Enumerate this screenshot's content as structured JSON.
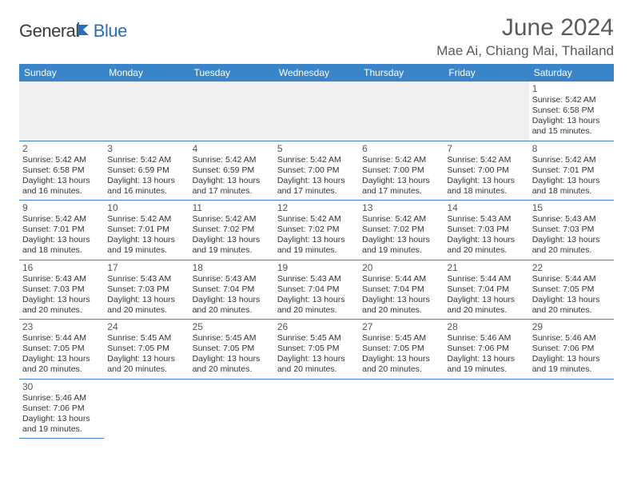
{
  "logo": {
    "general": "General",
    "blue": "Blue"
  },
  "title": "June 2024",
  "location": "Mae Ai, Chiang Mai, Thailand",
  "colors": {
    "header_bg": "#3a85c9",
    "header_text": "#ffffff",
    "cell_border": "#3a85c9",
    "empty_bg": "#f0f0f0",
    "text": "#333333",
    "title_text": "#5a5a5a",
    "logo_general": "#3a3a3a",
    "logo_blue": "#2a6fb5"
  },
  "typography": {
    "title_fontsize": 30,
    "location_fontsize": 17,
    "header_fontsize": 12,
    "daynum_fontsize": 12,
    "info_fontsize": 10.5
  },
  "weekdays": [
    "Sunday",
    "Monday",
    "Tuesday",
    "Wednesday",
    "Thursday",
    "Friday",
    "Saturday"
  ],
  "weeks": [
    [
      null,
      null,
      null,
      null,
      null,
      null,
      {
        "n": "1",
        "sr": "Sunrise: 5:42 AM",
        "ss": "Sunset: 6:58 PM",
        "dl": "Daylight: 13 hours and 15 minutes."
      }
    ],
    [
      {
        "n": "2",
        "sr": "Sunrise: 5:42 AM",
        "ss": "Sunset: 6:58 PM",
        "dl": "Daylight: 13 hours and 16 minutes."
      },
      {
        "n": "3",
        "sr": "Sunrise: 5:42 AM",
        "ss": "Sunset: 6:59 PM",
        "dl": "Daylight: 13 hours and 16 minutes."
      },
      {
        "n": "4",
        "sr": "Sunrise: 5:42 AM",
        "ss": "Sunset: 6:59 PM",
        "dl": "Daylight: 13 hours and 17 minutes."
      },
      {
        "n": "5",
        "sr": "Sunrise: 5:42 AM",
        "ss": "Sunset: 7:00 PM",
        "dl": "Daylight: 13 hours and 17 minutes."
      },
      {
        "n": "6",
        "sr": "Sunrise: 5:42 AM",
        "ss": "Sunset: 7:00 PM",
        "dl": "Daylight: 13 hours and 17 minutes."
      },
      {
        "n": "7",
        "sr": "Sunrise: 5:42 AM",
        "ss": "Sunset: 7:00 PM",
        "dl": "Daylight: 13 hours and 18 minutes."
      },
      {
        "n": "8",
        "sr": "Sunrise: 5:42 AM",
        "ss": "Sunset: 7:01 PM",
        "dl": "Daylight: 13 hours and 18 minutes."
      }
    ],
    [
      {
        "n": "9",
        "sr": "Sunrise: 5:42 AM",
        "ss": "Sunset: 7:01 PM",
        "dl": "Daylight: 13 hours and 18 minutes."
      },
      {
        "n": "10",
        "sr": "Sunrise: 5:42 AM",
        "ss": "Sunset: 7:01 PM",
        "dl": "Daylight: 13 hours and 19 minutes."
      },
      {
        "n": "11",
        "sr": "Sunrise: 5:42 AM",
        "ss": "Sunset: 7:02 PM",
        "dl": "Daylight: 13 hours and 19 minutes."
      },
      {
        "n": "12",
        "sr": "Sunrise: 5:42 AM",
        "ss": "Sunset: 7:02 PM",
        "dl": "Daylight: 13 hours and 19 minutes."
      },
      {
        "n": "13",
        "sr": "Sunrise: 5:42 AM",
        "ss": "Sunset: 7:02 PM",
        "dl": "Daylight: 13 hours and 19 minutes."
      },
      {
        "n": "14",
        "sr": "Sunrise: 5:43 AM",
        "ss": "Sunset: 7:03 PM",
        "dl": "Daylight: 13 hours and 20 minutes."
      },
      {
        "n": "15",
        "sr": "Sunrise: 5:43 AM",
        "ss": "Sunset: 7:03 PM",
        "dl": "Daylight: 13 hours and 20 minutes."
      }
    ],
    [
      {
        "n": "16",
        "sr": "Sunrise: 5:43 AM",
        "ss": "Sunset: 7:03 PM",
        "dl": "Daylight: 13 hours and 20 minutes."
      },
      {
        "n": "17",
        "sr": "Sunrise: 5:43 AM",
        "ss": "Sunset: 7:03 PM",
        "dl": "Daylight: 13 hours and 20 minutes."
      },
      {
        "n": "18",
        "sr": "Sunrise: 5:43 AM",
        "ss": "Sunset: 7:04 PM",
        "dl": "Daylight: 13 hours and 20 minutes."
      },
      {
        "n": "19",
        "sr": "Sunrise: 5:43 AM",
        "ss": "Sunset: 7:04 PM",
        "dl": "Daylight: 13 hours and 20 minutes."
      },
      {
        "n": "20",
        "sr": "Sunrise: 5:44 AM",
        "ss": "Sunset: 7:04 PM",
        "dl": "Daylight: 13 hours and 20 minutes."
      },
      {
        "n": "21",
        "sr": "Sunrise: 5:44 AM",
        "ss": "Sunset: 7:04 PM",
        "dl": "Daylight: 13 hours and 20 minutes."
      },
      {
        "n": "22",
        "sr": "Sunrise: 5:44 AM",
        "ss": "Sunset: 7:05 PM",
        "dl": "Daylight: 13 hours and 20 minutes."
      }
    ],
    [
      {
        "n": "23",
        "sr": "Sunrise: 5:44 AM",
        "ss": "Sunset: 7:05 PM",
        "dl": "Daylight: 13 hours and 20 minutes."
      },
      {
        "n": "24",
        "sr": "Sunrise: 5:45 AM",
        "ss": "Sunset: 7:05 PM",
        "dl": "Daylight: 13 hours and 20 minutes."
      },
      {
        "n": "25",
        "sr": "Sunrise: 5:45 AM",
        "ss": "Sunset: 7:05 PM",
        "dl": "Daylight: 13 hours and 20 minutes."
      },
      {
        "n": "26",
        "sr": "Sunrise: 5:45 AM",
        "ss": "Sunset: 7:05 PM",
        "dl": "Daylight: 13 hours and 20 minutes."
      },
      {
        "n": "27",
        "sr": "Sunrise: 5:45 AM",
        "ss": "Sunset: 7:05 PM",
        "dl": "Daylight: 13 hours and 20 minutes."
      },
      {
        "n": "28",
        "sr": "Sunrise: 5:46 AM",
        "ss": "Sunset: 7:06 PM",
        "dl": "Daylight: 13 hours and 19 minutes."
      },
      {
        "n": "29",
        "sr": "Sunrise: 5:46 AM",
        "ss": "Sunset: 7:06 PM",
        "dl": "Daylight: 13 hours and 19 minutes."
      }
    ],
    [
      {
        "n": "30",
        "sr": "Sunrise: 5:46 AM",
        "ss": "Sunset: 7:06 PM",
        "dl": "Daylight: 13 hours and 19 minutes."
      },
      null,
      null,
      null,
      null,
      null,
      null
    ]
  ]
}
